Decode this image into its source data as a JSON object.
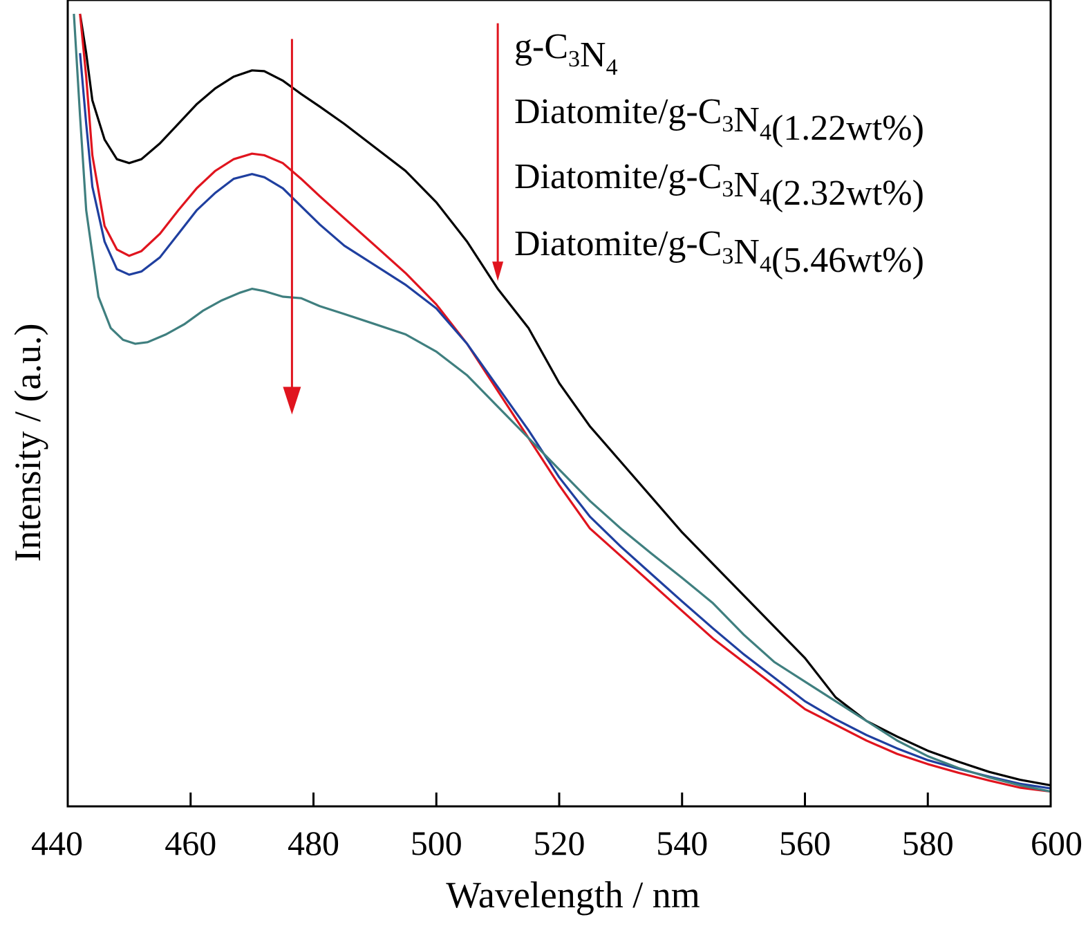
{
  "chart_data": {
    "type": "line",
    "xlabel": "Wavelength / nm",
    "ylabel": "Intensity / (a.u.)",
    "xlim": [
      440,
      600
    ],
    "ylim": [
      0,
      1
    ],
    "x_ticks": [
      "440",
      "460",
      "480",
      "500",
      "520",
      "540",
      "560",
      "580",
      "600"
    ],
    "y_ticks_labeled": false,
    "grid": false,
    "legend_placement": "top-right",
    "colors": {
      "g-C3N4": "#000000",
      "1.22wt%": "#e0141e",
      "2.32wt%": "#1f3f9f",
      "5.46wt%": "#3f7f7f",
      "arrow": "#e0141e"
    },
    "series": [
      {
        "name": "g-C3N4",
        "legend": {
          "prefix": "g-C",
          "sub1": "3",
          "mid": "N",
          "sub2": "4",
          "suffix": ""
        },
        "color": "#000000",
        "points": [
          [
            442,
            1.0
          ],
          [
            443,
            0.95
          ],
          [
            444,
            0.89
          ],
          [
            446,
            0.84
          ],
          [
            448,
            0.815
          ],
          [
            450,
            0.81
          ],
          [
            452,
            0.815
          ],
          [
            455,
            0.835
          ],
          [
            458,
            0.86
          ],
          [
            461,
            0.885
          ],
          [
            464,
            0.905
          ],
          [
            467,
            0.92
          ],
          [
            470,
            0.928
          ],
          [
            472,
            0.927
          ],
          [
            475,
            0.915
          ],
          [
            478,
            0.898
          ],
          [
            481,
            0.882
          ],
          [
            485,
            0.86
          ],
          [
            490,
            0.83
          ],
          [
            495,
            0.8
          ],
          [
            500,
            0.76
          ],
          [
            505,
            0.71
          ],
          [
            510,
            0.65
          ],
          [
            515,
            0.6
          ],
          [
            520,
            0.53
          ],
          [
            525,
            0.475
          ],
          [
            530,
            0.43
          ],
          [
            535,
            0.385
          ],
          [
            540,
            0.34
          ],
          [
            545,
            0.3
          ],
          [
            550,
            0.26
          ],
          [
            555,
            0.22
          ],
          [
            560,
            0.18
          ],
          [
            565,
            0.13
          ],
          [
            570,
            0.1
          ],
          [
            575,
            0.08
          ],
          [
            580,
            0.062
          ],
          [
            585,
            0.048
          ],
          [
            590,
            0.035
          ],
          [
            595,
            0.025
          ],
          [
            600,
            0.018
          ]
        ]
      },
      {
        "name": "Diatomite/g-C3N4(1.22wt%)",
        "legend": {
          "prefix": "Diatomite/g-C",
          "sub1": "3",
          "mid": "N",
          "sub2": "4",
          "suffix": "(1.22wt%)"
        },
        "color": "#e0141e",
        "points": [
          [
            442,
            1.0
          ],
          [
            443,
            0.92
          ],
          [
            444,
            0.82
          ],
          [
            446,
            0.73
          ],
          [
            448,
            0.7
          ],
          [
            450,
            0.692
          ],
          [
            452,
            0.698
          ],
          [
            455,
            0.72
          ],
          [
            458,
            0.75
          ],
          [
            461,
            0.778
          ],
          [
            464,
            0.8
          ],
          [
            467,
            0.815
          ],
          [
            470,
            0.822
          ],
          [
            472,
            0.82
          ],
          [
            475,
            0.81
          ],
          [
            478,
            0.79
          ],
          [
            481,
            0.768
          ],
          [
            485,
            0.74
          ],
          [
            490,
            0.705
          ],
          [
            495,
            0.67
          ],
          [
            500,
            0.63
          ],
          [
            505,
            0.58
          ],
          [
            510,
            0.52
          ],
          [
            515,
            0.46
          ],
          [
            520,
            0.4
          ],
          [
            525,
            0.345
          ],
          [
            530,
            0.31
          ],
          [
            535,
            0.275
          ],
          [
            540,
            0.24
          ],
          [
            545,
            0.205
          ],
          [
            550,
            0.175
          ],
          [
            555,
            0.145
          ],
          [
            560,
            0.115
          ],
          [
            565,
            0.095
          ],
          [
            570,
            0.075
          ],
          [
            575,
            0.058
          ],
          [
            580,
            0.045
          ],
          [
            585,
            0.034
          ],
          [
            590,
            0.024
          ],
          [
            595,
            0.015
          ],
          [
            600,
            0.01
          ]
        ]
      },
      {
        "name": "Diatomite/g-C3N4(2.32wt%)",
        "legend": {
          "prefix": "Diatomite/g-C",
          "sub1": "3",
          "mid": "N",
          "sub2": "4",
          "suffix": "(2.32wt%)"
        },
        "color": "#1f3f9f",
        "points": [
          [
            442,
            0.95
          ],
          [
            443,
            0.86
          ],
          [
            444,
            0.78
          ],
          [
            446,
            0.71
          ],
          [
            448,
            0.675
          ],
          [
            450,
            0.668
          ],
          [
            452,
            0.672
          ],
          [
            455,
            0.69
          ],
          [
            458,
            0.72
          ],
          [
            461,
            0.75
          ],
          [
            464,
            0.772
          ],
          [
            467,
            0.79
          ],
          [
            470,
            0.796
          ],
          [
            472,
            0.792
          ],
          [
            475,
            0.778
          ],
          [
            478,
            0.755
          ],
          [
            481,
            0.732
          ],
          [
            485,
            0.705
          ],
          [
            490,
            0.68
          ],
          [
            495,
            0.655
          ],
          [
            500,
            0.625
          ],
          [
            505,
            0.58
          ],
          [
            510,
            0.525
          ],
          [
            515,
            0.47
          ],
          [
            520,
            0.41
          ],
          [
            525,
            0.36
          ],
          [
            530,
            0.322
          ],
          [
            535,
            0.287
          ],
          [
            540,
            0.252
          ],
          [
            545,
            0.218
          ],
          [
            550,
            0.185
          ],
          [
            555,
            0.155
          ],
          [
            560,
            0.125
          ],
          [
            565,
            0.102
          ],
          [
            570,
            0.082
          ],
          [
            575,
            0.065
          ],
          [
            580,
            0.05
          ],
          [
            585,
            0.039
          ],
          [
            590,
            0.029
          ],
          [
            595,
            0.02
          ],
          [
            600,
            0.014
          ]
        ]
      },
      {
        "name": "Diatomite/g-C3N4(5.46wt%)",
        "legend": {
          "prefix": "Diatomite/g-C",
          "sub1": "3",
          "mid": "N",
          "sub2": "4",
          "suffix": "(5.46wt%)"
        },
        "color": "#3f7f7f",
        "points": [
          [
            441,
            1.0
          ],
          [
            442,
            0.87
          ],
          [
            443,
            0.75
          ],
          [
            445,
            0.64
          ],
          [
            447,
            0.6
          ],
          [
            449,
            0.585
          ],
          [
            451,
            0.58
          ],
          [
            453,
            0.582
          ],
          [
            456,
            0.592
          ],
          [
            459,
            0.605
          ],
          [
            462,
            0.622
          ],
          [
            465,
            0.635
          ],
          [
            468,
            0.645
          ],
          [
            470,
            0.65
          ],
          [
            472,
            0.647
          ],
          [
            475,
            0.64
          ],
          [
            478,
            0.638
          ],
          [
            481,
            0.628
          ],
          [
            485,
            0.618
          ],
          [
            490,
            0.605
          ],
          [
            495,
            0.592
          ],
          [
            500,
            0.57
          ],
          [
            505,
            0.54
          ],
          [
            510,
            0.5
          ],
          [
            515,
            0.46
          ],
          [
            520,
            0.42
          ],
          [
            525,
            0.38
          ],
          [
            530,
            0.345
          ],
          [
            535,
            0.313
          ],
          [
            540,
            0.282
          ],
          [
            545,
            0.25
          ],
          [
            550,
            0.21
          ],
          [
            555,
            0.175
          ],
          [
            560,
            0.15
          ],
          [
            565,
            0.125
          ],
          [
            570,
            0.1
          ],
          [
            575,
            0.075
          ],
          [
            580,
            0.055
          ],
          [
            585,
            0.04
          ],
          [
            590,
            0.028
          ],
          [
            595,
            0.018
          ],
          [
            600,
            0.01
          ]
        ]
      }
    ],
    "annotations": [
      {
        "type": "arrow",
        "direction": "down",
        "x": 476.5,
        "y_from": 0.968,
        "y_to": 0.49
      },
      {
        "type": "arrow",
        "direction": "down",
        "x": 510,
        "y_from": 0.988,
        "y_to": 0.66
      }
    ]
  }
}
